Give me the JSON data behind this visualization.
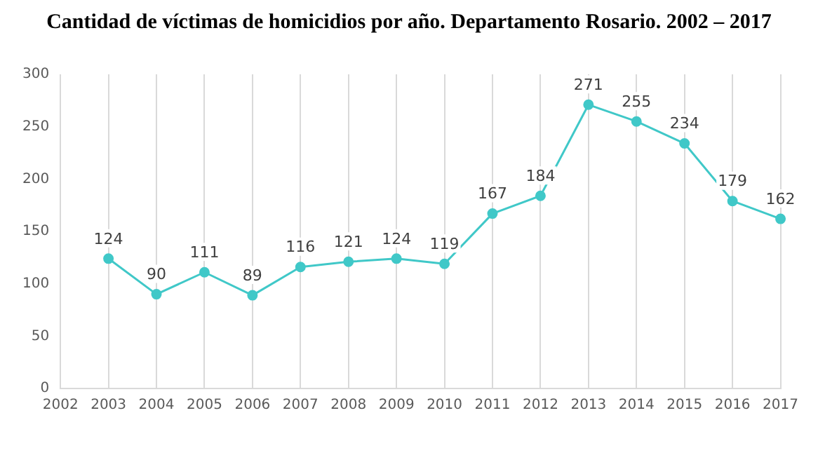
{
  "chart_data": {
    "type": "line",
    "title": "Cantidad de víctimas de homicidios por año. Departamento Rosario. 2002 – 2017",
    "categories": [
      "2002",
      "2003",
      "2004",
      "2005",
      "2006",
      "2007",
      "2008",
      "2009",
      "2010",
      "2011",
      "2012",
      "2013",
      "2014",
      "2015",
      "2016",
      "2017"
    ],
    "series": [
      {
        "color": "#40c8c8",
        "values": [
          null,
          124,
          90,
          111,
          89,
          116,
          121,
          124,
          119,
          167,
          184,
          271,
          255,
          234,
          179,
          162
        ]
      }
    ],
    "ylim": [
      0,
      300
    ],
    "yticks": [
      0,
      50,
      100,
      150,
      200,
      250,
      300
    ],
    "grid": "x",
    "marker": "circle",
    "data_labels": true
  }
}
